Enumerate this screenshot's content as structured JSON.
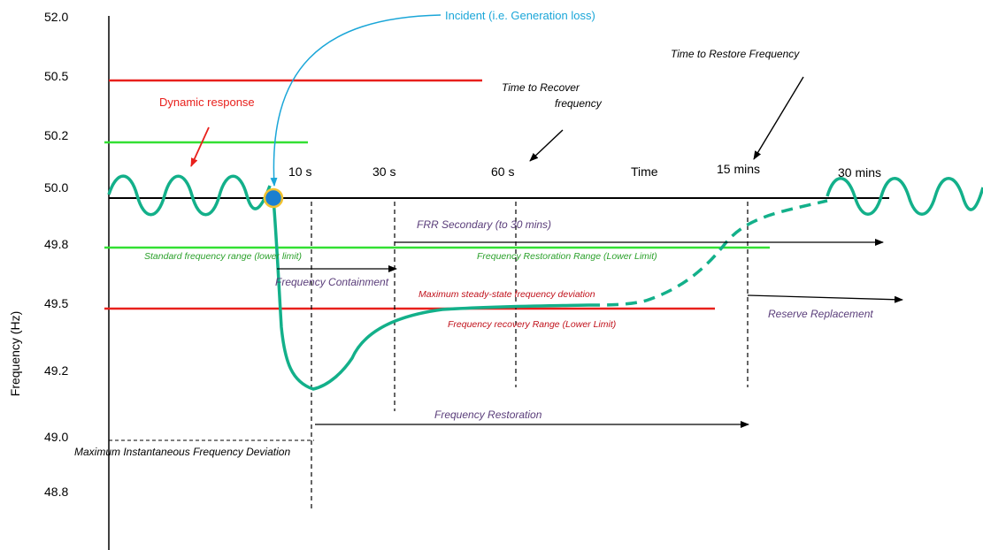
{
  "y_axis": {
    "label": "Frequency  (Hz)",
    "ticks": [
      "52.0",
      "50.5",
      "50.2",
      "50.0",
      "49.8",
      "49.5",
      "49.2",
      "49.0",
      "48.8"
    ]
  },
  "time_labels": {
    "t10": "10 s",
    "t30": "30 s",
    "t60": "60 s",
    "time": "Time",
    "t15m": "15 mins",
    "t30m": "30 mins"
  },
  "annotations": {
    "incident": "Incident (i.e. Generation loss)",
    "dynamic_response": "Dynamic response",
    "time_to_recover_line1": "Time to Recover",
    "time_to_recover_line2": "frequency",
    "time_to_restore": "Time to Restore Frequency",
    "frr_secondary": "FRR Secondary (to 30 mins)",
    "standard_range": "Standard frequency range (lower limit)",
    "restoration_range": "Frequency Restoration Range (Lower Limit)",
    "containment": "Frequency Containment",
    "max_steady_state": "Maximum steady-state frequency deviation",
    "recovery_range": "Frequency recovery Range (Lower Limit)",
    "reserve_replacement": "Reserve Replacement",
    "frequency_restoration": "Frequency Restoration",
    "max_instantaneous": "Maximum Instantaneous Frequency Deviation"
  },
  "colors": {
    "red_line": "#e8201c",
    "green_line": "#33e033",
    "curve": "#13b08a",
    "incident": "#1aa6d8",
    "purple_text": "#5a3d7a",
    "green_text": "#2aa02a",
    "red_text": "#c0101a"
  }
}
